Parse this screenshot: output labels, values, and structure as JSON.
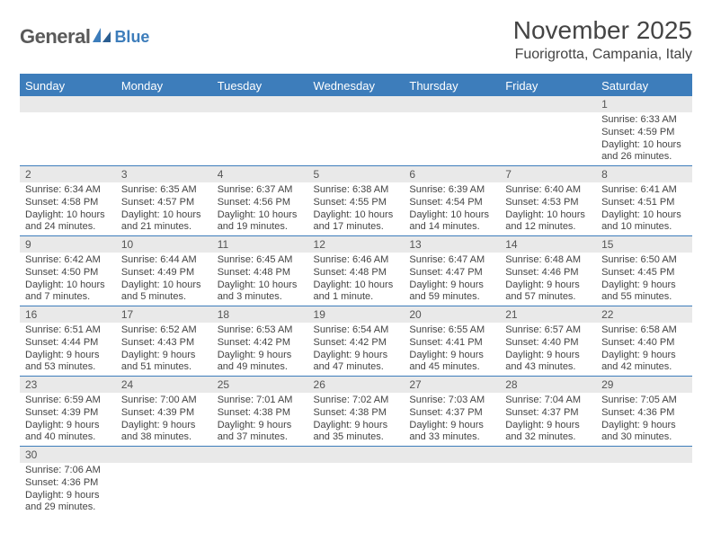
{
  "logo": {
    "text_general": "General",
    "text_blue": "Blue"
  },
  "header": {
    "month_title": "November 2025",
    "location": "Fuorigrotta, Campania, Italy"
  },
  "colors": {
    "accent": "#3d7dbb",
    "header_text": "#ffffff",
    "daynum_bg": "#e9e9e9",
    "text": "#444444",
    "logo_gray": "#5a5a5a"
  },
  "calendar": {
    "day_names": [
      "Sunday",
      "Monday",
      "Tuesday",
      "Wednesday",
      "Thursday",
      "Friday",
      "Saturday"
    ],
    "weeks": [
      [
        null,
        null,
        null,
        null,
        null,
        null,
        {
          "n": "1",
          "sunrise": "6:33 AM",
          "sunset": "4:59 PM",
          "daylight": "10 hours and 26 minutes."
        }
      ],
      [
        {
          "n": "2",
          "sunrise": "6:34 AM",
          "sunset": "4:58 PM",
          "daylight": "10 hours and 24 minutes."
        },
        {
          "n": "3",
          "sunrise": "6:35 AM",
          "sunset": "4:57 PM",
          "daylight": "10 hours and 21 minutes."
        },
        {
          "n": "4",
          "sunrise": "6:37 AM",
          "sunset": "4:56 PM",
          "daylight": "10 hours and 19 minutes."
        },
        {
          "n": "5",
          "sunrise": "6:38 AM",
          "sunset": "4:55 PM",
          "daylight": "10 hours and 17 minutes."
        },
        {
          "n": "6",
          "sunrise": "6:39 AM",
          "sunset": "4:54 PM",
          "daylight": "10 hours and 14 minutes."
        },
        {
          "n": "7",
          "sunrise": "6:40 AM",
          "sunset": "4:53 PM",
          "daylight": "10 hours and 12 minutes."
        },
        {
          "n": "8",
          "sunrise": "6:41 AM",
          "sunset": "4:51 PM",
          "daylight": "10 hours and 10 minutes."
        }
      ],
      [
        {
          "n": "9",
          "sunrise": "6:42 AM",
          "sunset": "4:50 PM",
          "daylight": "10 hours and 7 minutes."
        },
        {
          "n": "10",
          "sunrise": "6:44 AM",
          "sunset": "4:49 PM",
          "daylight": "10 hours and 5 minutes."
        },
        {
          "n": "11",
          "sunrise": "6:45 AM",
          "sunset": "4:48 PM",
          "daylight": "10 hours and 3 minutes."
        },
        {
          "n": "12",
          "sunrise": "6:46 AM",
          "sunset": "4:48 PM",
          "daylight": "10 hours and 1 minute."
        },
        {
          "n": "13",
          "sunrise": "6:47 AM",
          "sunset": "4:47 PM",
          "daylight": "9 hours and 59 minutes."
        },
        {
          "n": "14",
          "sunrise": "6:48 AM",
          "sunset": "4:46 PM",
          "daylight": "9 hours and 57 minutes."
        },
        {
          "n": "15",
          "sunrise": "6:50 AM",
          "sunset": "4:45 PM",
          "daylight": "9 hours and 55 minutes."
        }
      ],
      [
        {
          "n": "16",
          "sunrise": "6:51 AM",
          "sunset": "4:44 PM",
          "daylight": "9 hours and 53 minutes."
        },
        {
          "n": "17",
          "sunrise": "6:52 AM",
          "sunset": "4:43 PM",
          "daylight": "9 hours and 51 minutes."
        },
        {
          "n": "18",
          "sunrise": "6:53 AM",
          "sunset": "4:42 PM",
          "daylight": "9 hours and 49 minutes."
        },
        {
          "n": "19",
          "sunrise": "6:54 AM",
          "sunset": "4:42 PM",
          "daylight": "9 hours and 47 minutes."
        },
        {
          "n": "20",
          "sunrise": "6:55 AM",
          "sunset": "4:41 PM",
          "daylight": "9 hours and 45 minutes."
        },
        {
          "n": "21",
          "sunrise": "6:57 AM",
          "sunset": "4:40 PM",
          "daylight": "9 hours and 43 minutes."
        },
        {
          "n": "22",
          "sunrise": "6:58 AM",
          "sunset": "4:40 PM",
          "daylight": "9 hours and 42 minutes."
        }
      ],
      [
        {
          "n": "23",
          "sunrise": "6:59 AM",
          "sunset": "4:39 PM",
          "daylight": "9 hours and 40 minutes."
        },
        {
          "n": "24",
          "sunrise": "7:00 AM",
          "sunset": "4:39 PM",
          "daylight": "9 hours and 38 minutes."
        },
        {
          "n": "25",
          "sunrise": "7:01 AM",
          "sunset": "4:38 PM",
          "daylight": "9 hours and 37 minutes."
        },
        {
          "n": "26",
          "sunrise": "7:02 AM",
          "sunset": "4:38 PM",
          "daylight": "9 hours and 35 minutes."
        },
        {
          "n": "27",
          "sunrise": "7:03 AM",
          "sunset": "4:37 PM",
          "daylight": "9 hours and 33 minutes."
        },
        {
          "n": "28",
          "sunrise": "7:04 AM",
          "sunset": "4:37 PM",
          "daylight": "9 hours and 32 minutes."
        },
        {
          "n": "29",
          "sunrise": "7:05 AM",
          "sunset": "4:36 PM",
          "daylight": "9 hours and 30 minutes."
        }
      ],
      [
        {
          "n": "30",
          "sunrise": "7:06 AM",
          "sunset": "4:36 PM",
          "daylight": "9 hours and 29 minutes."
        },
        null,
        null,
        null,
        null,
        null,
        null
      ]
    ],
    "labels": {
      "sunrise": "Sunrise:",
      "sunset": "Sunset:",
      "daylight": "Daylight:"
    }
  }
}
